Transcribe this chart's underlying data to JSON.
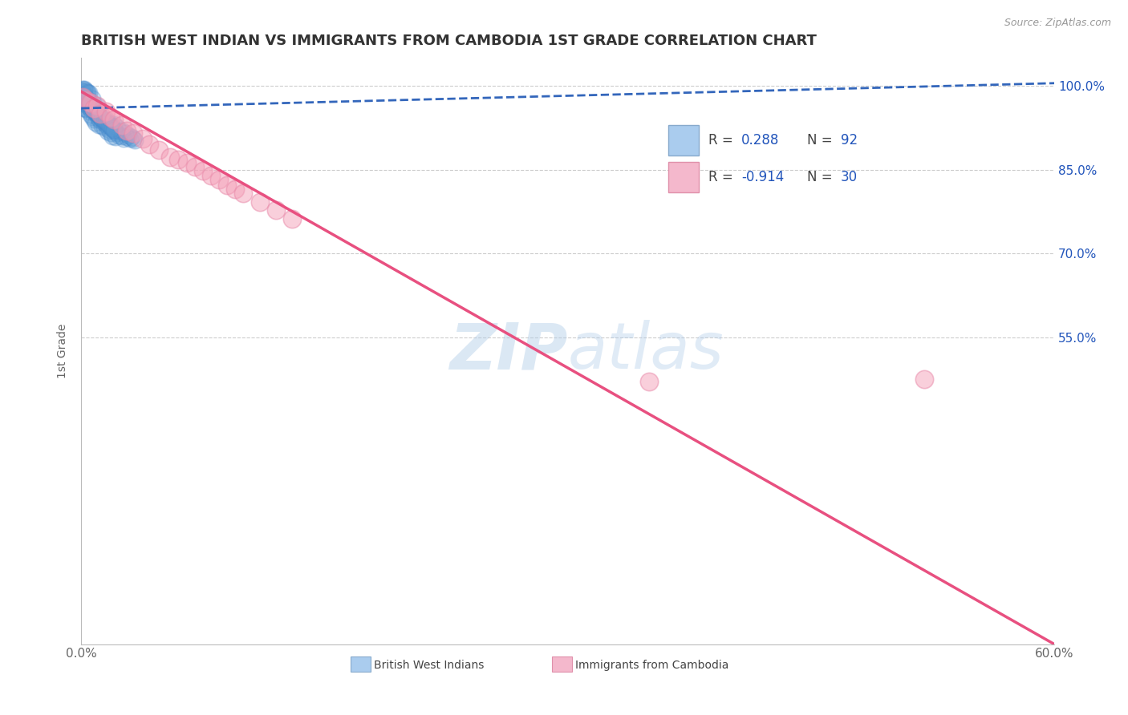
{
  "title": "BRITISH WEST INDIAN VS IMMIGRANTS FROM CAMBODIA 1ST GRADE CORRELATION CHART",
  "source_text": "Source: ZipAtlas.com",
  "ylabel": "1st Grade",
  "xlim": [
    0.0,
    0.6
  ],
  "ylim": [
    0.0,
    1.05
  ],
  "yticks": [
    0.0,
    0.55,
    0.7,
    0.85,
    1.0
  ],
  "yticklabels": [
    "",
    "55.0%",
    "70.0%",
    "85.0%",
    "100.0%"
  ],
  "blue_R": "0.288",
  "blue_N": "92",
  "pink_R": "-0.914",
  "pink_N": "30",
  "blue_scatter_x": [
    0.0,
    0.001,
    0.001,
    0.001,
    0.002,
    0.002,
    0.002,
    0.003,
    0.003,
    0.003,
    0.004,
    0.004,
    0.004,
    0.005,
    0.005,
    0.005,
    0.006,
    0.006,
    0.006,
    0.007,
    0.007,
    0.007,
    0.008,
    0.008,
    0.008,
    0.009,
    0.009,
    0.01,
    0.01,
    0.01,
    0.011,
    0.011,
    0.012,
    0.012,
    0.013,
    0.013,
    0.014,
    0.014,
    0.015,
    0.015,
    0.016,
    0.016,
    0.017,
    0.017,
    0.018,
    0.018,
    0.019,
    0.019,
    0.02,
    0.02,
    0.021,
    0.021,
    0.022,
    0.022,
    0.023,
    0.024,
    0.025,
    0.025,
    0.026,
    0.027,
    0.028,
    0.029,
    0.03,
    0.031,
    0.032,
    0.033,
    0.0,
    0.001,
    0.002,
    0.003,
    0.004,
    0.005,
    0.006,
    0.007,
    0.008,
    0.009,
    0.01,
    0.011,
    0.012,
    0.013,
    0.014,
    0.015,
    0.016,
    0.017,
    0.018,
    0.019,
    0.02,
    0.001,
    0.002,
    0.003,
    0.004,
    0.005
  ],
  "blue_scatter_y": [
    0.98,
    0.975,
    0.97,
    0.99,
    0.985,
    0.96,
    0.995,
    0.968,
    0.978,
    0.958,
    0.972,
    0.965,
    0.988,
    0.962,
    0.975,
    0.955,
    0.968,
    0.958,
    0.948,
    0.962,
    0.978,
    0.945,
    0.955,
    0.968,
    0.94,
    0.952,
    0.935,
    0.958,
    0.948,
    0.965,
    0.942,
    0.93,
    0.945,
    0.938,
    0.94,
    0.928,
    0.935,
    0.925,
    0.932,
    0.94,
    0.928,
    0.918,
    0.935,
    0.922,
    0.93,
    0.915,
    0.928,
    0.91,
    0.922,
    0.932,
    0.918,
    0.908,
    0.915,
    0.925,
    0.912,
    0.918,
    0.91,
    0.92,
    0.905,
    0.915,
    0.908,
    0.912,
    0.905,
    0.908,
    0.905,
    0.902,
    0.992,
    0.982,
    0.978,
    0.972,
    0.969,
    0.966,
    0.963,
    0.96,
    0.957,
    0.954,
    0.951,
    0.948,
    0.945,
    0.942,
    0.939,
    0.936,
    0.933,
    0.93,
    0.927,
    0.924,
    0.921,
    0.995,
    0.993,
    0.991,
    0.989,
    0.987
  ],
  "pink_scatter_x": [
    0.001,
    0.003,
    0.006,
    0.008,
    0.01,
    0.012,
    0.015,
    0.018,
    0.02,
    0.025,
    0.028,
    0.032,
    0.038,
    0.042,
    0.048,
    0.055,
    0.06,
    0.065,
    0.07,
    0.075,
    0.08,
    0.085,
    0.09,
    0.095,
    0.1,
    0.11,
    0.12,
    0.13,
    0.35,
    0.52
  ],
  "pink_scatter_y": [
    0.98,
    0.975,
    0.97,
    0.96,
    0.965,
    0.95,
    0.955,
    0.945,
    0.94,
    0.93,
    0.92,
    0.915,
    0.905,
    0.895,
    0.885,
    0.872,
    0.868,
    0.862,
    0.855,
    0.848,
    0.84,
    0.832,
    0.822,
    0.815,
    0.808,
    0.792,
    0.778,
    0.762,
    0.47,
    0.475
  ],
  "blue_line_x": [
    0.0,
    0.6
  ],
  "blue_line_y": [
    0.96,
    1.005
  ],
  "pink_line_x": [
    0.0,
    0.6
  ],
  "pink_line_y": [
    0.99,
    0.0
  ],
  "watermark_zip": "ZIP",
  "watermark_atlas": "atlas",
  "blue_color": "#5b9bd5",
  "blue_edge_color": "#4488cc",
  "pink_color": "#f4a0b8",
  "pink_edge_color": "#e888a8",
  "blue_line_color": "#3366bb",
  "pink_line_color": "#e85080",
  "grid_color": "#cccccc",
  "title_color": "#333333",
  "axis_label_color": "#666666",
  "legend_R_color": "#2255bb",
  "source_color": "#999999",
  "right_ytick_color": "#2255bb",
  "legend_blue_fill": "#aaccee",
  "legend_blue_edge": "#88aacc",
  "legend_pink_fill": "#f4b8cc",
  "legend_pink_edge": "#e090aa"
}
